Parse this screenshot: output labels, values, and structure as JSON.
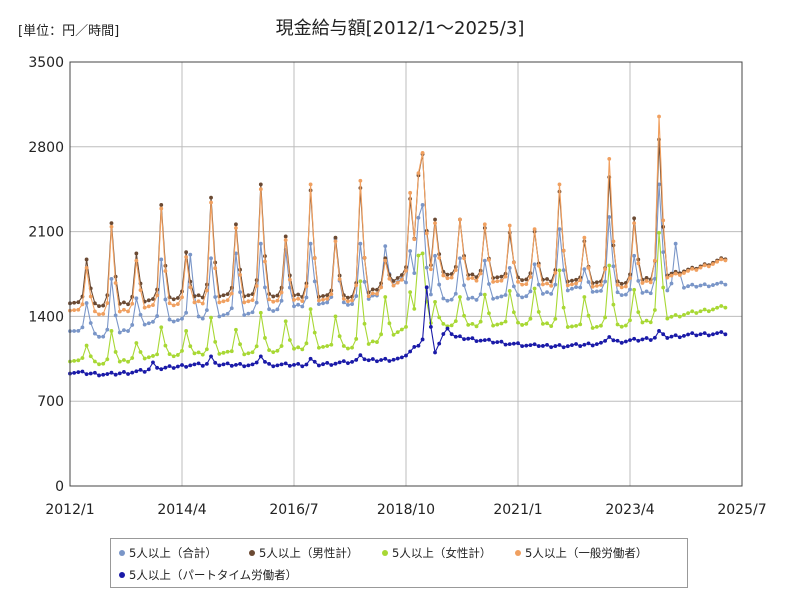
{
  "unit_label": "[単位：円／時間]",
  "chart_data": {
    "type": "line",
    "title": "現金給与額[2012/1～2025/3]",
    "xlabel": "",
    "ylabel": "",
    "ylim": [
      0,
      3500
    ],
    "yticks": [
      0,
      700,
      1400,
      2100,
      2800,
      3500
    ],
    "xticks": [
      "2012/1",
      "2014/4",
      "2016/7",
      "2018/10",
      "2021/1",
      "2023/4",
      "2025/7"
    ],
    "grid": true,
    "legend_position": "bottom",
    "colors": {
      "total": "#7a96c8",
      "male": "#6b4a33",
      "female": "#a8d834",
      "general": "#f0a060",
      "parttime": "#1a1aa8"
    },
    "series": [
      {
        "name": "5人以上（合計）",
        "key": "total",
        "anchors": [
          [
            0,
            1290
          ],
          [
            9,
            1230
          ],
          [
            18,
            1340
          ],
          [
            29,
            1380
          ],
          [
            44,
            1430
          ],
          [
            59,
            1510
          ],
          [
            70,
            1500
          ],
          [
            80,
            1700
          ],
          [
            84,
            1510
          ],
          [
            90,
            1540
          ],
          [
            100,
            1550
          ],
          [
            112,
            1570
          ],
          [
            122,
            1630
          ],
          [
            135,
            1580
          ],
          [
            150,
            1650
          ],
          [
            158,
            1670
          ]
        ],
        "peaks": [
          [
            4,
            1510
          ],
          [
            10,
            1710
          ],
          [
            16,
            1550
          ],
          [
            22,
            1870
          ],
          [
            29,
            1910
          ],
          [
            34,
            1880
          ],
          [
            40,
            1920
          ],
          [
            46,
            2000
          ],
          [
            52,
            1950
          ],
          [
            58,
            2000
          ],
          [
            64,
            2040
          ],
          [
            70,
            2000
          ],
          [
            76,
            1980
          ],
          [
            82,
            1940
          ],
          [
            84,
            2200
          ],
          [
            85,
            2320
          ],
          [
            88,
            1900
          ],
          [
            94,
            1880
          ],
          [
            100,
            1860
          ],
          [
            106,
            1800
          ],
          [
            112,
            1830
          ],
          [
            118,
            2120
          ],
          [
            124,
            1790
          ],
          [
            130,
            2220
          ],
          [
            136,
            1900
          ],
          [
            142,
            2490
          ],
          [
            146,
            2000
          ]
        ]
      },
      {
        "name": "5人以上（男性計）",
        "key": "male",
        "anchors": [
          [
            0,
            1520
          ],
          [
            9,
            1490
          ],
          [
            18,
            1530
          ],
          [
            29,
            1560
          ],
          [
            44,
            1580
          ],
          [
            59,
            1570
          ],
          [
            70,
            1560
          ],
          [
            80,
            1730
          ],
          [
            84,
            1760
          ],
          [
            90,
            1760
          ],
          [
            100,
            1730
          ],
          [
            112,
            1700
          ],
          [
            122,
            1690
          ],
          [
            135,
            1680
          ],
          [
            150,
            1790
          ],
          [
            158,
            1880
          ]
        ],
        "peaks": [
          [
            4,
            1870
          ],
          [
            10,
            2170
          ],
          [
            16,
            1920
          ],
          [
            22,
            2320
          ],
          [
            28,
            1930
          ],
          [
            34,
            2380
          ],
          [
            40,
            2160
          ],
          [
            46,
            2490
          ],
          [
            52,
            2060
          ],
          [
            58,
            2440
          ],
          [
            64,
            2050
          ],
          [
            70,
            2460
          ],
          [
            76,
            1880
          ],
          [
            82,
            2370
          ],
          [
            84,
            2540
          ],
          [
            85,
            2740
          ],
          [
            88,
            2200
          ],
          [
            94,
            2200
          ],
          [
            100,
            2130
          ],
          [
            106,
            2090
          ],
          [
            112,
            2100
          ],
          [
            118,
            2430
          ],
          [
            124,
            2020
          ],
          [
            130,
            2550
          ],
          [
            136,
            2210
          ],
          [
            142,
            2860
          ]
        ]
      },
      {
        "name": "5人以上（女性計）",
        "key": "female",
        "anchors": [
          [
            0,
            1040
          ],
          [
            9,
            1010
          ],
          [
            18,
            1060
          ],
          [
            29,
            1090
          ],
          [
            44,
            1100
          ],
          [
            59,
            1150
          ],
          [
            70,
            1140
          ],
          [
            80,
            1280
          ],
          [
            84,
            1290
          ],
          [
            90,
            1330
          ],
          [
            100,
            1330
          ],
          [
            112,
            1340
          ],
          [
            122,
            1310
          ],
          [
            135,
            1330
          ],
          [
            150,
            1430
          ],
          [
            158,
            1480
          ]
        ],
        "peaks": [
          [
            4,
            1160
          ],
          [
            10,
            1280
          ],
          [
            16,
            1180
          ],
          [
            22,
            1310
          ],
          [
            28,
            1280
          ],
          [
            34,
            1390
          ],
          [
            40,
            1290
          ],
          [
            46,
            1430
          ],
          [
            52,
            1360
          ],
          [
            58,
            1460
          ],
          [
            64,
            1400
          ],
          [
            70,
            1690
          ],
          [
            76,
            1560
          ],
          [
            82,
            1600
          ],
          [
            84,
            1900
          ],
          [
            85,
            1920
          ],
          [
            88,
            1520
          ],
          [
            94,
            1560
          ],
          [
            100,
            1580
          ],
          [
            106,
            1610
          ],
          [
            112,
            1630
          ],
          [
            118,
            1780
          ],
          [
            124,
            1560
          ],
          [
            130,
            1820
          ],
          [
            136,
            1620
          ],
          [
            142,
            2090
          ]
        ]
      },
      {
        "name": "5人以上（一般労働者）",
        "key": "general",
        "anchors": [
          [
            0,
            1460
          ],
          [
            9,
            1420
          ],
          [
            18,
            1480
          ],
          [
            29,
            1510
          ],
          [
            44,
            1530
          ],
          [
            59,
            1540
          ],
          [
            70,
            1530
          ],
          [
            80,
            1690
          ],
          [
            84,
            1720
          ],
          [
            90,
            1730
          ],
          [
            100,
            1700
          ],
          [
            112,
            1660
          ],
          [
            122,
            1660
          ],
          [
            135,
            1650
          ],
          [
            150,
            1780
          ],
          [
            158,
            1870
          ]
        ],
        "peaks": [
          [
            4,
            1800
          ],
          [
            10,
            2140
          ],
          [
            16,
            1860
          ],
          [
            22,
            2290
          ],
          [
            28,
            1890
          ],
          [
            34,
            2340
          ],
          [
            40,
            2130
          ],
          [
            46,
            2450
          ],
          [
            52,
            2030
          ],
          [
            58,
            2490
          ],
          [
            64,
            2020
          ],
          [
            70,
            2520
          ],
          [
            76,
            1860
          ],
          [
            82,
            2420
          ],
          [
            84,
            2560
          ],
          [
            85,
            2750
          ],
          [
            88,
            2170
          ],
          [
            94,
            2200
          ],
          [
            100,
            2160
          ],
          [
            106,
            2150
          ],
          [
            112,
            2120
          ],
          [
            118,
            2490
          ],
          [
            124,
            2050
          ],
          [
            130,
            2700
          ],
          [
            136,
            2170
          ],
          [
            142,
            3050
          ]
        ]
      },
      {
        "name": "5人以上（パートタイム労働者）",
        "key": "parttime",
        "anchors": [
          [
            0,
            940
          ],
          [
            9,
            920
          ],
          [
            18,
            950
          ],
          [
            29,
            1000
          ],
          [
            44,
            1000
          ],
          [
            59,
            1000
          ],
          [
            70,
            1030
          ],
          [
            80,
            1050
          ],
          [
            84,
            1170
          ],
          [
            88,
            1110
          ],
          [
            90,
            1240
          ],
          [
            100,
            1200
          ],
          [
            112,
            1150
          ],
          [
            122,
            1160
          ],
          [
            135,
            1200
          ],
          [
            150,
            1250
          ],
          [
            158,
            1260
          ]
        ],
        "peaks": [
          [
            20,
            1020
          ],
          [
            34,
            1070
          ],
          [
            46,
            1070
          ],
          [
            58,
            1050
          ],
          [
            70,
            1080
          ],
          [
            82,
            1110
          ],
          [
            86,
            1640
          ],
          [
            91,
            1300
          ],
          [
            112,
            1170
          ],
          [
            130,
            1230
          ],
          [
            142,
            1280
          ]
        ]
      }
    ]
  }
}
